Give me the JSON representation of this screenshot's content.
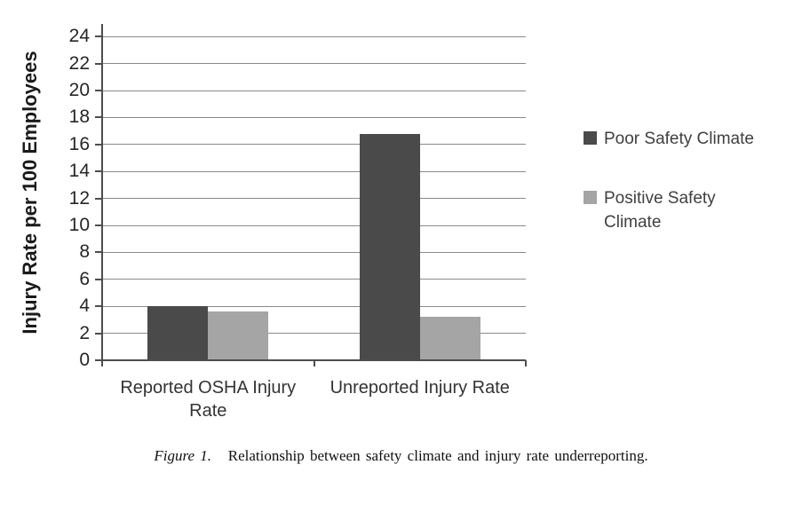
{
  "figure": {
    "caption_label": "Figure 1.",
    "caption_text": "Relationship between safety climate and injury rate underreporting."
  },
  "chart_data": {
    "type": "bar",
    "title": "",
    "categories": [
      {
        "label": "Reported OSHA Injury Rate",
        "lines": [
          "Reported OSHA Injury",
          "Rate"
        ]
      },
      {
        "label": "Unreported Injury Rate",
        "lines": [
          "Unreported Injury Rate"
        ]
      }
    ],
    "series": [
      {
        "name": "Poor Safety Climate",
        "color": "#4a4a4a",
        "values": [
          4.0,
          16.8
        ]
      },
      {
        "name": "Positive Safety Climate",
        "color": "#a5a5a5",
        "values": [
          3.6,
          3.2
        ]
      }
    ],
    "xlabel": "",
    "ylabel": "Injury Rate per 100 Employees",
    "ylim": [
      0,
      24
    ],
    "ytick_step": 2,
    "grid": true,
    "legend_position": "right",
    "colors": {
      "axis": "#4d4d4d",
      "gridline": "#8a8a8a",
      "tick_text": "#262626"
    }
  }
}
